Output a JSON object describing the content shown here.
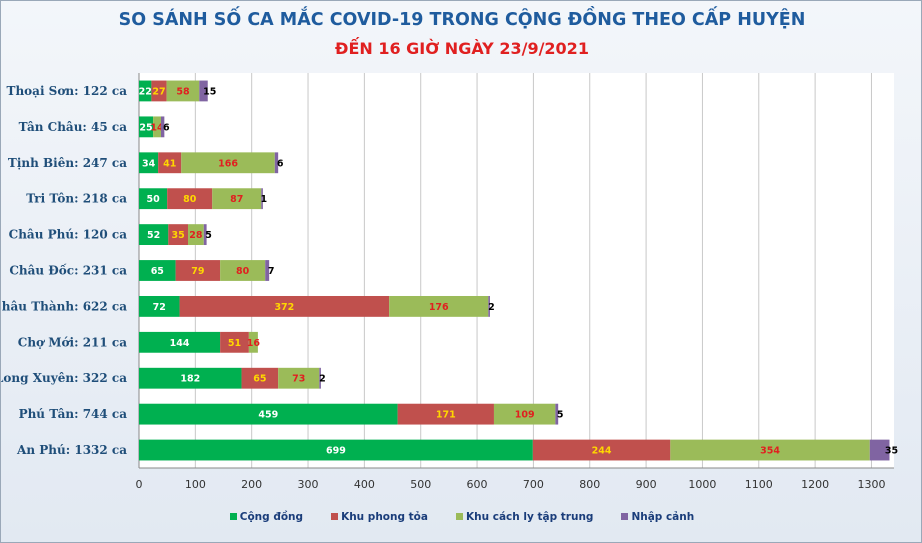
{
  "title": "SO SÁNH SỐ CA MẮC COVID-19 TRONG CỘNG ĐỒNG THEO CẤP HUYỆN",
  "subtitle": "ĐẾN 16 GIỜ NGÀY 23/9/2021",
  "chart_data": {
    "type": "bar",
    "orientation": "horizontal",
    "stacked": true,
    "categories": [
      "Thoại Sơn: 122 ca",
      "Tân Châu: 45 ca",
      "Tịnh Biên: 247 ca",
      "Tri Tôn: 218 ca",
      "Châu Phú: 120 ca",
      "Châu Đốc: 231 ca",
      "Châu Thành: 622 ca",
      "Chợ Mới: 211 ca",
      "Long Xuyên: 322 ca",
      "Phú Tân: 744 ca",
      "An Phú: 1332 ca"
    ],
    "series": [
      {
        "name": "Cộng đồng",
        "color": "#00b050",
        "label_color": "#ffffff",
        "values": [
          22,
          25,
          34,
          50,
          52,
          65,
          72,
          144,
          182,
          459,
          699
        ]
      },
      {
        "name": "Khu phong tỏa",
        "color": "#c0504d",
        "label_color": "#ffd700",
        "values": [
          27,
          0,
          41,
          80,
          35,
          79,
          372,
          51,
          65,
          171,
          244
        ]
      },
      {
        "name": "Khu cách ly tập trung",
        "color": "#9bbb59",
        "label_color": "#e02020",
        "values": [
          58,
          14,
          166,
          87,
          28,
          80,
          176,
          16,
          73,
          109,
          354
        ]
      },
      {
        "name": "Nhập cảnh",
        "color": "#8064a2",
        "label_color": "#000000",
        "values": [
          15,
          6,
          6,
          1,
          5,
          7,
          2,
          0,
          2,
          5,
          35
        ]
      }
    ],
    "xlim": [
      0,
      1300
    ],
    "x_ticks": [
      "0",
      "100",
      "200",
      "300",
      "400",
      "500",
      "600",
      "700",
      "800",
      "900",
      "1000",
      "1100",
      "1200",
      "1300"
    ],
    "grid": true,
    "legend_position": "bottom",
    "xlabel": "",
    "ylabel": ""
  }
}
